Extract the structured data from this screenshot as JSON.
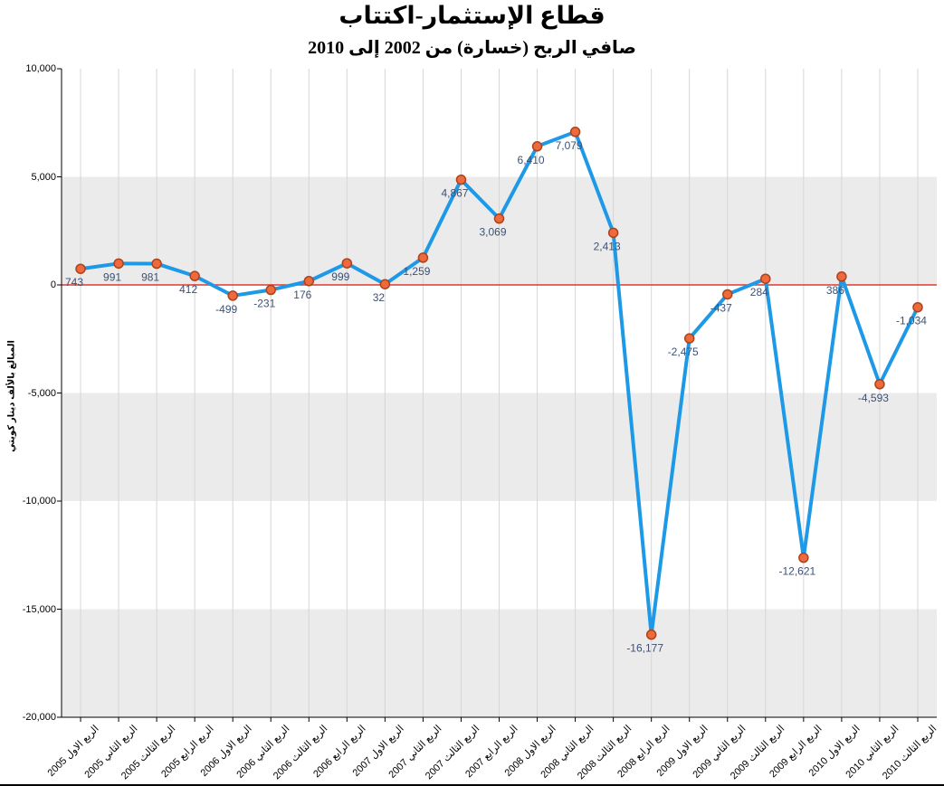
{
  "chart_data": {
    "type": "line",
    "title": "قطاع الإستثمار-اكتتاب",
    "subtitle": "صافي الربح (خسارة) من 2002 إلى 2010",
    "ylabel": "المبالغ بالألف دينار كويتي",
    "xlabel": "",
    "ylim": [
      -20000,
      10000
    ],
    "ytick_values": [
      10000,
      5000,
      0,
      -5000,
      -10000,
      -15000,
      -20000
    ],
    "ytick_labels": [
      "10,000",
      "5,000",
      "0",
      "-5,000",
      "-10,000",
      "-15,000",
      "-20,000"
    ],
    "grid": true,
    "legend": false,
    "categories": [
      "الربع الاول 2005",
      "الربع الثاني 2005",
      "الربع الثالث 2005",
      "الربع الرابع 2005",
      "الربع الاول 2006",
      "الربع الثاني 2006",
      "الربع الثالث 2006",
      "الربع الرابع 2006",
      "الربع الاول 2007",
      "الربع الثاني 2007",
      "الربع الثالث 2007",
      "الربع الرابع 2007",
      "الربع الاول 2008",
      "الربع الثاني 2008",
      "الربع الثالث 2008",
      "الربع الرابع 2008",
      "الربع الاول 2009",
      "الربع الثاني 2009",
      "الربع الثالث 2009",
      "الربع الرابع 2009",
      "الربع الاول 2010",
      "الربع الثاني 2010",
      "الربع الثالث 2010"
    ],
    "values": [
      743,
      991,
      981,
      412,
      -499,
      -231,
      176,
      999,
      32,
      1259,
      4867,
      3069,
      6410,
      7079,
      2413,
      -16177,
      -2475,
      -437,
      284,
      -12621,
      386,
      -4593,
      -1034
    ],
    "point_labels": [
      "743",
      "991",
      "981",
      "412",
      "-499",
      "-231",
      "176",
      "999",
      "32",
      "1,259",
      "4,867",
      "3,069",
      "6,410",
      "7,079",
      "2,413",
      "-16,177",
      "-2,475",
      "-437",
      "284",
      "-12,621",
      "386",
      "-4,593",
      "-1,034"
    ],
    "colors": {
      "line": "#1D99E8",
      "marker_fill": "#EE6A3C",
      "marker_stroke": "#A8431F",
      "value_label": "#3D5174",
      "zero_line": "#DE3B2F",
      "band": "#EBEBEB",
      "grid": "#D6D6D6",
      "axis": "#000000"
    }
  }
}
